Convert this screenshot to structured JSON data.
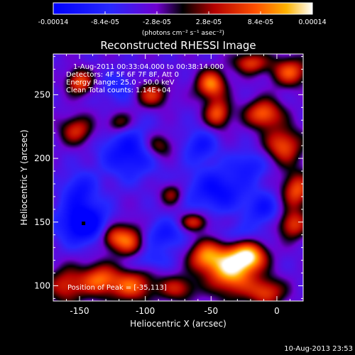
{
  "chart_data": {
    "type": "heatmap",
    "title": "Reconstructed RHESSI Image",
    "xlabel": "Heliocentric X (arcsec)",
    "ylabel": "Heliocentric Y (arcsec)",
    "xlim": [
      -170,
      20
    ],
    "ylim": [
      88,
      282
    ],
    "x_ticks": [
      -150,
      -100,
      -50,
      0
    ],
    "y_ticks": [
      100,
      150,
      200,
      250
    ],
    "x_tick_labels": [
      "-150",
      "-100",
      "-50",
      "0"
    ],
    "y_tick_labels": [
      "100",
      "150",
      "200",
      "250"
    ],
    "colorbar": {
      "tick_labels": [
        "-0.00014",
        "-8.4e-05",
        "-2.8e-05",
        "2.8e-05",
        "8.4e-05",
        "0.00014"
      ],
      "tick_values": [
        -0.00014,
        -8.4e-05,
        -2.8e-05,
        2.8e-05,
        8.4e-05,
        0.00014
      ],
      "range": [
        -0.00014,
        0.00014
      ],
      "unit_label": "(photons cm⁻² s⁻¹ asec⁻²)"
    },
    "annotations": [
      "1-Aug-2011 00:33:04.000 to 00:38:14.000",
      "Detectors: 4F 5F 6F 7F 8F, Att 0",
      "Energy Range: 25.0 - 50.0 keV",
      "Clean     Total counts: 1.14E+04"
    ],
    "peak_label": "Position of Peak = [-35,113]",
    "peak_position": [
      -35,
      113
    ],
    "minimum_marker": [
      -147,
      149
    ],
    "blobs": [
      {
        "x": -35,
        "y": 113,
        "sx": 12,
        "sy": 14,
        "v": 0.00014
      },
      {
        "x": -20,
        "y": 123,
        "sx": 9,
        "sy": 8,
        "v": 0.00011
      },
      {
        "x": -55,
        "y": 123,
        "sx": 9,
        "sy": 9,
        "v": 9e-05
      },
      {
        "x": -8,
        "y": 95,
        "sx": 10,
        "sy": 8,
        "v": 8e-05
      },
      {
        "x": -110,
        "y": 100,
        "sx": 12,
        "sy": 9,
        "v": 9e-05
      },
      {
        "x": -135,
        "y": 105,
        "sx": 10,
        "sy": 9,
        "v": 9e-05
      },
      {
        "x": -160,
        "y": 100,
        "sx": 10,
        "sy": 10,
        "v": 7e-05
      },
      {
        "x": -75,
        "y": 98,
        "sx": 10,
        "sy": 7,
        "v": 6e-05
      },
      {
        "x": -112,
        "y": 135,
        "sx": 8,
        "sy": 10,
        "v": 8e-05
      },
      {
        "x": -125,
        "y": 138,
        "sx": 7,
        "sy": 7,
        "v": 7e-05
      },
      {
        "x": -63,
        "y": 150,
        "sx": 8,
        "sy": 5,
        "v": 7e-05
      },
      {
        "x": 12,
        "y": 148,
        "sx": 8,
        "sy": 8,
        "v": 8e-05
      },
      {
        "x": 15,
        "y": 175,
        "sx": 8,
        "sy": 10,
        "v": 9e-05
      },
      {
        "x": 5,
        "y": 210,
        "sx": 10,
        "sy": 10,
        "v": 9e-05
      },
      {
        "x": -10,
        "y": 235,
        "sx": 10,
        "sy": 8,
        "v": 0.0001
      },
      {
        "x": -50,
        "y": 258,
        "sx": 8,
        "sy": 8,
        "v": 0.00011
      },
      {
        "x": -45,
        "y": 235,
        "sx": 7,
        "sy": 8,
        "v": 9e-05
      },
      {
        "x": 10,
        "y": 268,
        "sx": 10,
        "sy": 8,
        "v": 9e-05
      },
      {
        "x": -20,
        "y": 275,
        "sx": 9,
        "sy": 6,
        "v": 8e-05
      },
      {
        "x": -150,
        "y": 260,
        "sx": 7,
        "sy": 7,
        "v": 9e-05
      },
      {
        "x": -152,
        "y": 222,
        "sx": 9,
        "sy": 8,
        "v": 7e-05
      },
      {
        "x": -95,
        "y": 250,
        "sx": 9,
        "sy": 7,
        "v": 7e-05
      },
      {
        "x": -90,
        "y": 210,
        "sx": 8,
        "sy": 7,
        "v": 6e-05
      },
      {
        "x": -120,
        "y": 228,
        "sx": 7,
        "sy": 6,
        "v": 5e-05
      },
      {
        "x": -80,
        "y": 172,
        "sx": 6,
        "sy": 6,
        "v": 5e-05
      },
      {
        "x": -147,
        "y": 149,
        "sx": 13,
        "sy": 11,
        "v": -0.00013
      },
      {
        "x": -112,
        "y": 205,
        "sx": 15,
        "sy": 14,
        "v": -9e-05
      },
      {
        "x": -45,
        "y": 175,
        "sx": 16,
        "sy": 12,
        "v": -9e-05
      },
      {
        "x": -58,
        "y": 210,
        "sx": 9,
        "sy": 9,
        "v": -7e-05
      },
      {
        "x": -150,
        "y": 175,
        "sx": 9,
        "sy": 10,
        "v": -7e-05
      },
      {
        "x": -85,
        "y": 140,
        "sx": 11,
        "sy": 9,
        "v": -7e-05
      },
      {
        "x": -10,
        "y": 160,
        "sx": 9,
        "sy": 9,
        "v": -7e-05
      },
      {
        "x": -20,
        "y": 195,
        "sx": 10,
        "sy": 8,
        "v": -6e-05
      },
      {
        "x": -30,
        "y": 140,
        "sx": 12,
        "sy": 6,
        "v": -5e-05
      },
      {
        "x": -100,
        "y": 120,
        "sx": 12,
        "sy": 6,
        "v": -5e-05
      },
      {
        "x": -120,
        "y": 255,
        "sx": 9,
        "sy": 8,
        "v": -5e-05
      }
    ]
  },
  "footer": {
    "timestamp": "10-Aug-2013 23:53"
  }
}
